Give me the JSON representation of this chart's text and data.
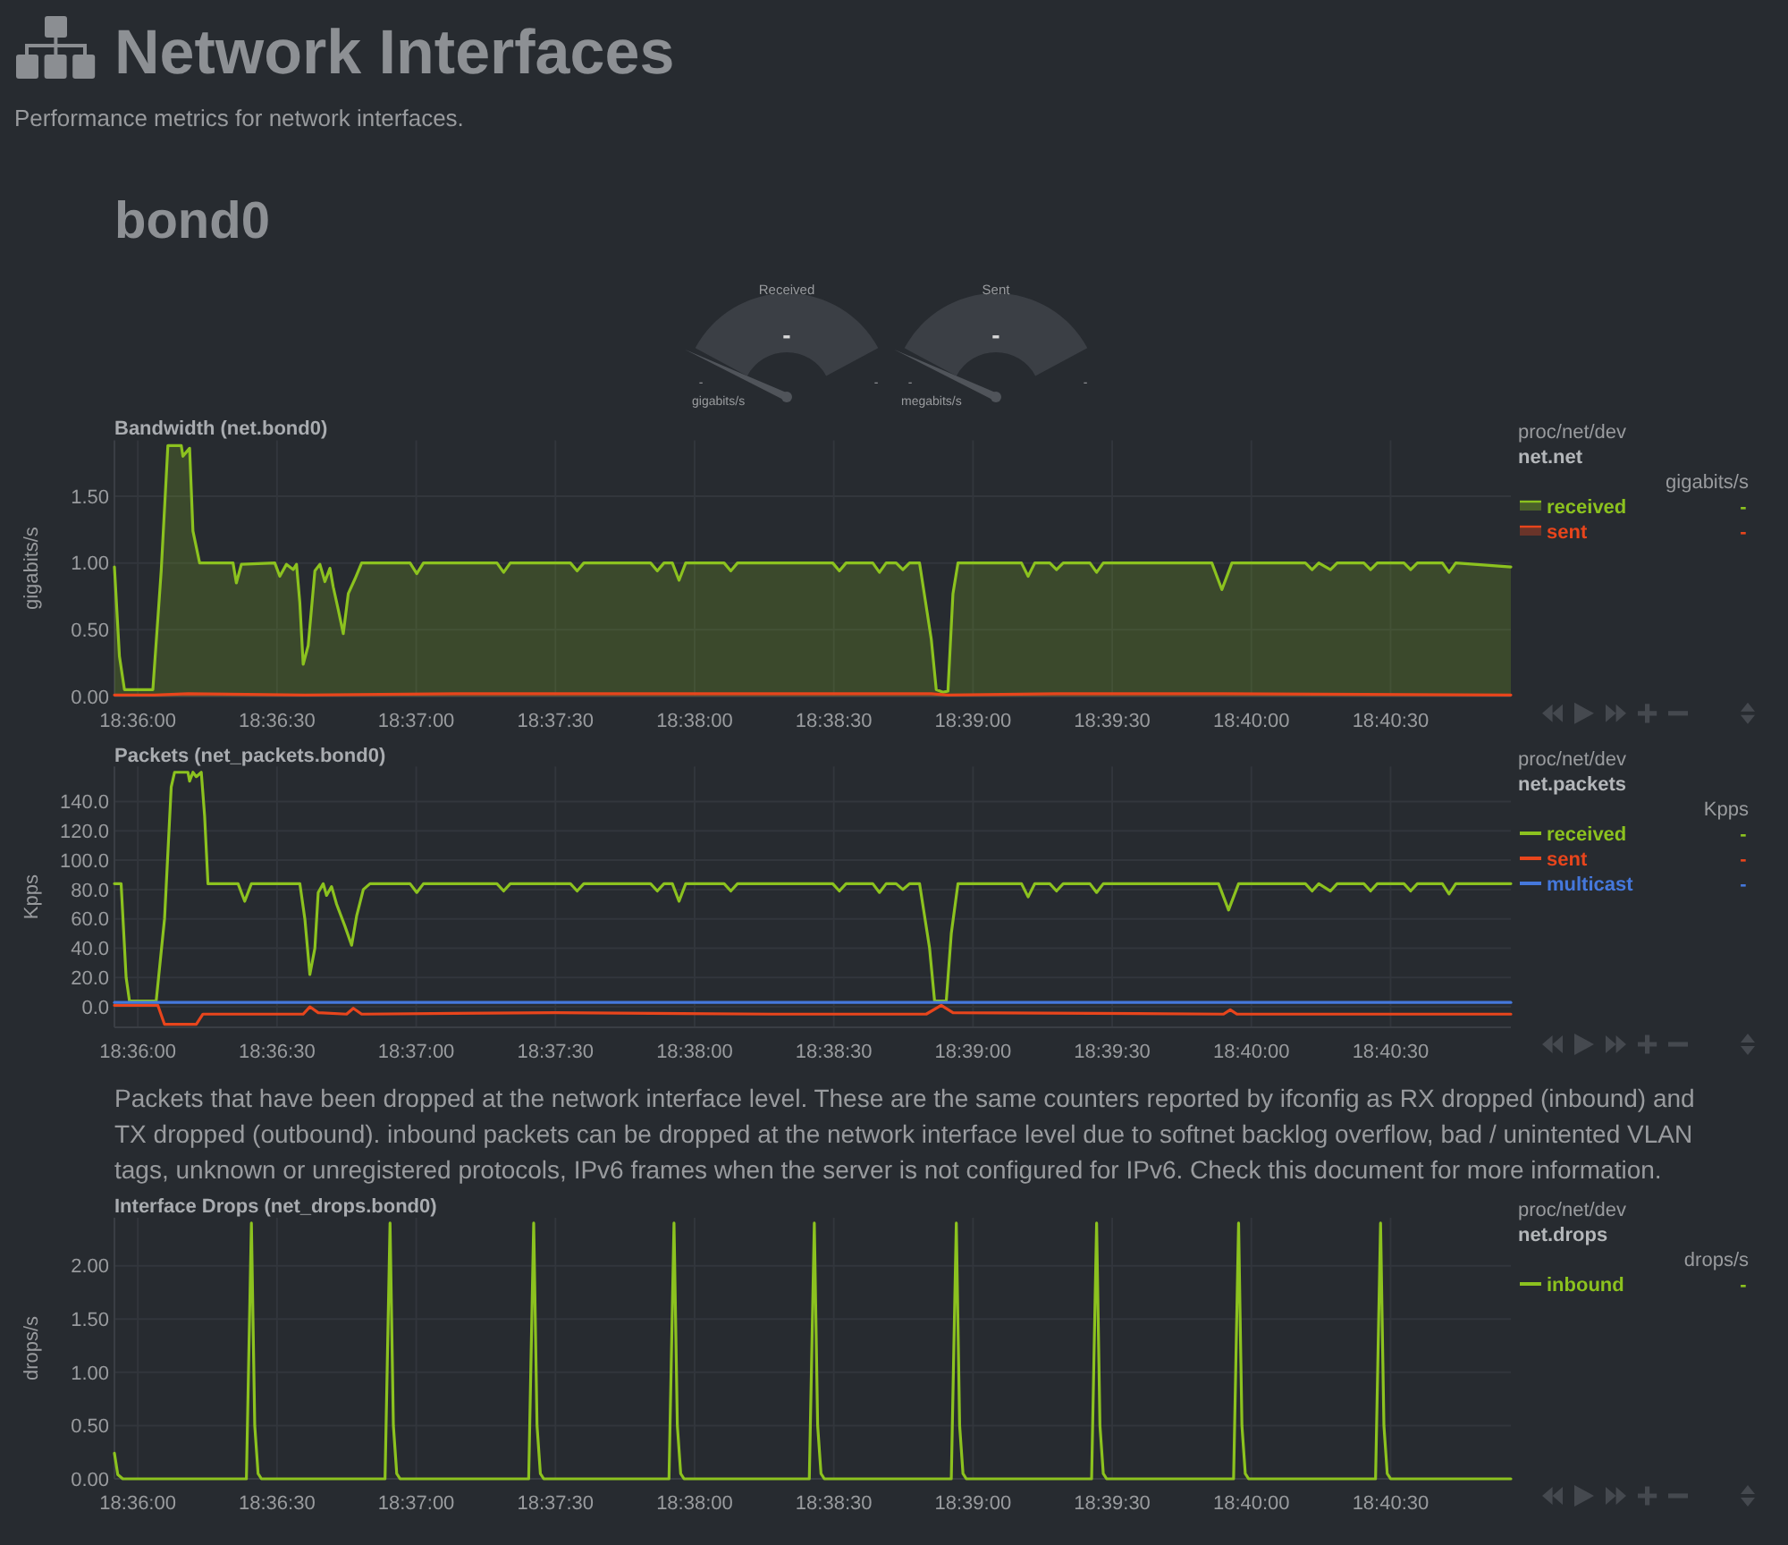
{
  "chart_data": [
    {
      "type": "other",
      "title": "Network Interfaces",
      "subtitle": "Performance metrics for network interfaces.",
      "annotations": [
        "bond0"
      ]
    },
    {
      "type": "other",
      "title": "Received",
      "annotations": [
        "-",
        "-",
        "-",
        "gigabits/s"
      ]
    },
    {
      "type": "other",
      "title": "Sent",
      "annotations": [
        "-",
        "-",
        "-",
        "megabits/s"
      ]
    },
    {
      "type": "area",
      "title": "Bandwidth (net.bond0)",
      "ylabel": "gigabits/s",
      "legend_title": "gigabits/s",
      "annotations": [
        "proc/net/dev",
        "net.net",
        "-",
        "-"
      ],
      "xlim": [
        18.5986,
        18.6822
      ],
      "xticks": [
        {
          "value": 18.6,
          "label": "18:36:00"
        },
        {
          "value": 18.608333,
          "label": "18:36:30"
        },
        {
          "value": 18.616667,
          "label": "18:37:00"
        },
        {
          "value": 18.625,
          "label": "18:37:30"
        },
        {
          "value": 18.633333,
          "label": "18:38:00"
        },
        {
          "value": 18.641667,
          "label": "18:38:30"
        },
        {
          "value": 18.65,
          "label": "18:39:00"
        },
        {
          "value": 18.658333,
          "label": "18:39:30"
        },
        {
          "value": 18.666667,
          "label": "18:40:00"
        },
        {
          "value": 18.675,
          "label": "18:40:30"
        }
      ],
      "ylim": [
        0,
        1.92
      ],
      "yticks": [
        {
          "value": 0,
          "label": "0.00"
        },
        {
          "value": 0.5,
          "label": "0.50"
        },
        {
          "value": 1,
          "label": "1.00"
        },
        {
          "value": 1.5,
          "label": "1.50"
        }
      ],
      "grid": true,
      "legend": "right",
      "series": [
        {
          "name": "received",
          "color": "#8cc21f",
          "x": [
            18.5986,
            18.5989,
            18.5992,
            18.6009,
            18.6014,
            18.6018,
            18.6026,
            18.6027,
            18.6031,
            18.6033,
            18.6037,
            18.6057,
            18.6059,
            18.6062,
            18.6082,
            18.6085,
            18.6089,
            18.6093,
            18.6095,
            18.6097,
            18.6099,
            18.6102,
            18.6106,
            18.6109,
            18.6112,
            18.6115,
            18.6117,
            18.612,
            18.6123,
            18.6126,
            18.613,
            18.6134,
            18.6163,
            18.6167,
            18.6171,
            18.6215,
            18.6219,
            18.6223,
            18.6259,
            18.6263,
            18.6267,
            18.6307,
            18.6311,
            18.6315,
            18.632,
            18.6324,
            18.6328,
            18.6351,
            18.6355,
            18.6359,
            18.6416,
            18.642,
            18.6424,
            18.644,
            18.6444,
            18.6448,
            18.6454,
            18.6458,
            18.6462,
            18.6468,
            18.6475,
            18.6478,
            18.6482,
            18.6485,
            18.6488,
            18.6491,
            18.6529,
            18.6533,
            18.6537,
            18.6546,
            18.655,
            18.6554,
            18.657,
            18.6574,
            18.6578,
            18.6643,
            18.6649,
            18.6655,
            18.6699,
            18.6703,
            18.6707,
            18.6714,
            18.6718,
            18.6734,
            18.6738,
            18.6742,
            18.6758,
            18.6762,
            18.6766,
            18.6781,
            18.6785,
            18.6789,
            18.6822
          ],
          "values": [
            0.97,
            0.3,
            0.05,
            0.05,
            0.94,
            1.88,
            1.88,
            1.8,
            1.86,
            1.24,
            1,
            1,
            0.85,
            0.99,
            1,
            0.9,
            0.99,
            0.95,
            0.99,
            0.7,
            0.24,
            0.38,
            0.94,
            0.99,
            0.86,
            0.96,
            0.82,
            0.65,
            0.47,
            0.77,
            0.88,
            1,
            1,
            0.92,
            1,
            1,
            0.93,
            1,
            1,
            0.94,
            1,
            1,
            0.94,
            1,
            1,
            0.87,
            1,
            1,
            0.94,
            1,
            1,
            0.94,
            1,
            1,
            0.93,
            1,
            1,
            0.95,
            1,
            1,
            0.43,
            0.05,
            0.03,
            0.04,
            0.77,
            1,
            1,
            0.9,
            1,
            1,
            0.95,
            1,
            1,
            0.93,
            1,
            1,
            0.8,
            1,
            1,
            0.95,
            1,
            0.95,
            1,
            1,
            0.95,
            1,
            1,
            0.95,
            1,
            1,
            0.93,
            1,
            0.97
          ]
        },
        {
          "name": "sent",
          "color": "#e8451c",
          "x": [
            18.5986,
            18.601,
            18.603,
            18.61,
            18.62,
            18.63,
            18.64,
            18.6475,
            18.6485,
            18.655,
            18.665,
            18.6822
          ],
          "values": [
            0.01,
            0.01,
            0.02,
            0.01,
            0.02,
            0.02,
            0.02,
            0.02,
            0.01,
            0.02,
            0.02,
            0.01
          ]
        }
      ]
    },
    {
      "type": "line",
      "title": "Packets (net_packets.bond0)",
      "ylabel": "Kpps",
      "legend_title": "Kpps",
      "annotations": [
        "proc/net/dev",
        "net.packets",
        "-",
        "-",
        "-"
      ],
      "xlim": [
        18.5986,
        18.6822
      ],
      "xticks": [
        {
          "value": 18.6,
          "label": "18:36:00"
        },
        {
          "value": 18.608333,
          "label": "18:36:30"
        },
        {
          "value": 18.616667,
          "label": "18:37:00"
        },
        {
          "value": 18.625,
          "label": "18:37:30"
        },
        {
          "value": 18.633333,
          "label": "18:38:00"
        },
        {
          "value": 18.641667,
          "label": "18:38:30"
        },
        {
          "value": 18.65,
          "label": "18:39:00"
        },
        {
          "value": 18.658333,
          "label": "18:39:30"
        },
        {
          "value": 18.666667,
          "label": "18:40:00"
        },
        {
          "value": 18.675,
          "label": "18:40:30"
        }
      ],
      "ylim": [
        -14,
        164
      ],
      "yticks": [
        {
          "value": 0,
          "label": "0.0"
        },
        {
          "value": 20,
          "label": "20.0"
        },
        {
          "value": 40,
          "label": "40.0"
        },
        {
          "value": 60,
          "label": "60.0"
        },
        {
          "value": 80,
          "label": "80.0"
        },
        {
          "value": 100,
          "label": "100.0"
        },
        {
          "value": 120,
          "label": "120.0"
        },
        {
          "value": 140,
          "label": "140.0"
        }
      ],
      "grid": true,
      "legend": "right",
      "series": [
        {
          "name": "received",
          "color": "#8cc21f",
          "x": [
            18.5986,
            18.599,
            18.5993,
            18.5995,
            18.6011,
            18.6016,
            18.602,
            18.6022,
            18.603,
            18.6031,
            18.6033,
            18.6035,
            18.6038,
            18.604,
            18.6042,
            18.606,
            18.6064,
            18.6068,
            18.6097,
            18.61,
            18.6103,
            18.6106,
            18.6108,
            18.6111,
            18.6113,
            18.6116,
            18.6119,
            18.6124,
            18.6128,
            18.6131,
            18.6135,
            18.6139,
            18.6163,
            18.6167,
            18.6171,
            18.6215,
            18.6219,
            18.6223,
            18.6259,
            18.6263,
            18.6267,
            18.6307,
            18.6311,
            18.6315,
            18.632,
            18.6324,
            18.6328,
            18.6351,
            18.6355,
            18.6359,
            18.6416,
            18.642,
            18.6424,
            18.644,
            18.6444,
            18.6448,
            18.6454,
            18.6458,
            18.6462,
            18.6468,
            18.6474,
            18.6477,
            18.6484,
            18.6487,
            18.6491,
            18.6529,
            18.6533,
            18.6537,
            18.6546,
            18.655,
            18.6554,
            18.657,
            18.6574,
            18.6578,
            18.6647,
            18.6653,
            18.6659,
            18.6699,
            18.6703,
            18.6707,
            18.6714,
            18.6718,
            18.6734,
            18.6738,
            18.6742,
            18.6758,
            18.6762,
            18.6766,
            18.6781,
            18.6785,
            18.6789,
            18.6822
          ],
          "values": [
            84,
            84,
            20,
            4,
            4,
            60,
            150,
            160,
            160,
            154,
            160,
            157,
            160,
            130,
            84,
            84,
            72,
            84,
            84,
            60,
            22,
            40,
            78,
            84,
            76,
            82,
            70,
            55,
            42,
            62,
            80,
            84,
            84,
            78,
            84,
            84,
            79,
            84,
            84,
            79,
            84,
            84,
            79,
            84,
            84,
            72,
            84,
            84,
            79,
            84,
            84,
            79,
            84,
            84,
            78,
            84,
            84,
            80,
            84,
            84,
            40,
            4,
            4,
            50,
            84,
            84,
            75,
            84,
            84,
            79,
            84,
            84,
            78,
            84,
            84,
            66,
            84,
            84,
            79,
            84,
            79,
            84,
            84,
            79,
            84,
            84,
            79,
            84,
            84,
            77,
            84,
            84
          ]
        },
        {
          "name": "sent",
          "color": "#e8451c",
          "x": [
            18.5986,
            18.6012,
            18.6016,
            18.6035,
            18.6039,
            18.6099,
            18.6103,
            18.6108,
            18.6125,
            18.6129,
            18.6134,
            18.625,
            18.638,
            18.6472,
            18.6481,
            18.6488,
            18.665,
            18.6654,
            18.6658,
            18.6822
          ],
          "values": [
            1,
            1,
            -12,
            -12,
            -5,
            -5,
            0,
            -4,
            -5,
            -1,
            -5,
            -4,
            -5,
            -5,
            1,
            -4,
            -5,
            -2,
            -5,
            -5
          ]
        },
        {
          "name": "multicast",
          "color": "#4578dc",
          "x": [
            18.5986,
            18.6822
          ],
          "values": [
            3,
            3
          ]
        }
      ]
    },
    {
      "type": "other",
      "annotations": [
        "Packets that have been dropped at the network interface level. These are the same counters reported by ifconfig as RX dropped (inbound) and TX dropped (outbound). inbound packets can be dropped at the network interface level due to softnet backlog overflow, bad / unintented VLAN tags, unknown or unregistered protocols, IPv6 frames when the server is not configured for IPv6. Check this document for more information."
      ]
    },
    {
      "type": "line",
      "title": "Interface Drops (net_drops.bond0)",
      "ylabel": "drops/s",
      "legend_title": "drops/s",
      "annotations": [
        "proc/net/dev",
        "net.drops",
        "-"
      ],
      "xlim": [
        18.5986,
        18.6822
      ],
      "xticks": [
        {
          "value": 18.6,
          "label": "18:36:00"
        },
        {
          "value": 18.608333,
          "label": "18:36:30"
        },
        {
          "value": 18.616667,
          "label": "18:37:00"
        },
        {
          "value": 18.625,
          "label": "18:37:30"
        },
        {
          "value": 18.633333,
          "label": "18:38:00"
        },
        {
          "value": 18.641667,
          "label": "18:38:30"
        },
        {
          "value": 18.65,
          "label": "18:39:00"
        },
        {
          "value": 18.658333,
          "label": "18:39:30"
        },
        {
          "value": 18.666667,
          "label": "18:40:00"
        },
        {
          "value": 18.675,
          "label": "18:40:30"
        }
      ],
      "ylim": [
        0,
        2.45
      ],
      "yticks": [
        {
          "value": 0,
          "label": "0.00"
        },
        {
          "value": 0.5,
          "label": "0.50"
        },
        {
          "value": 1,
          "label": "1.00"
        },
        {
          "value": 1.5,
          "label": "1.50"
        },
        {
          "value": 2,
          "label": "2.00"
        }
      ],
      "grid": true,
      "legend": "right",
      "series": [
        {
          "name": "inbound",
          "color": "#8cc21f",
          "x": [
            18.5986,
            18.5988,
            18.5991,
            18.6065,
            18.6068,
            18.607,
            18.6072,
            18.6074,
            18.6148,
            18.6151,
            18.6153,
            18.6155,
            18.6157,
            18.6234,
            18.6237,
            18.6239,
            18.6241,
            18.6243,
            18.6318,
            18.6321,
            18.6323,
            18.6325,
            18.6327,
            18.6402,
            18.6405,
            18.6407,
            18.6409,
            18.6411,
            18.6487,
            18.649,
            18.6492,
            18.6494,
            18.6496,
            18.6571,
            18.6574,
            18.6576,
            18.6578,
            18.658,
            18.6656,
            18.6659,
            18.6661,
            18.6663,
            18.6665,
            18.6741,
            18.6744,
            18.6746,
            18.6748,
            18.675,
            18.6822
          ],
          "values": [
            0.24,
            0.04,
            0,
            0,
            2.4,
            0.5,
            0.05,
            0,
            0,
            2.4,
            0.5,
            0.05,
            0,
            0,
            2.4,
            0.5,
            0.05,
            0,
            0,
            2.4,
            0.5,
            0.05,
            0,
            0,
            2.4,
            0.5,
            0.05,
            0,
            0,
            2.4,
            0.5,
            0.05,
            0,
            0,
            2.4,
            0.5,
            0.05,
            0,
            0,
            2.4,
            0.5,
            0.05,
            0,
            0,
            2.4,
            0.5,
            0.05,
            0,
            0
          ]
        }
      ]
    }
  ]
}
